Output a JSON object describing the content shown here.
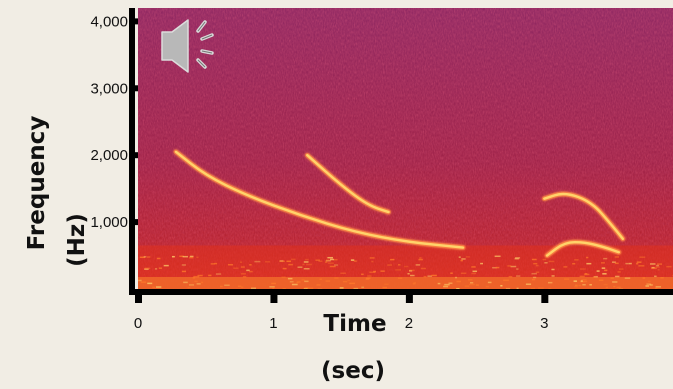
{
  "chart_data": {
    "type": "heatmap",
    "subtype": "spectrogram",
    "xlabel": [
      "Time",
      "(sec)"
    ],
    "ylabel": [
      "Frequency",
      "(Hz)"
    ],
    "x_ticks": [
      0,
      1,
      2,
      3
    ],
    "x_tick_labels": [
      "0",
      "1",
      "2",
      "3"
    ],
    "y_ticks": [
      1000,
      2000,
      3000,
      4000
    ],
    "y_tick_labels": [
      "1,000",
      "2,000",
      "3,000",
      "4,000"
    ],
    "xlim": [
      0,
      3.95
    ],
    "ylim": [
      0,
      4200
    ],
    "grid": false,
    "colors": {
      "background_low": "#7a2a6e",
      "background_mid": "#a31f3a",
      "energy": "#e0301c",
      "peak": "#ffd36a",
      "page": "#f1ede4"
    },
    "traces": [
      {
        "points": [
          [
            0.28,
            2050
          ],
          [
            0.5,
            1700
          ],
          [
            0.8,
            1400
          ],
          [
            1.2,
            1100
          ],
          [
            1.6,
            850
          ],
          [
            2.0,
            700
          ],
          [
            2.4,
            620
          ]
        ]
      },
      {
        "points": [
          [
            1.25,
            2000
          ],
          [
            1.5,
            1550
          ],
          [
            1.7,
            1250
          ],
          [
            1.85,
            1150
          ]
        ]
      },
      {
        "points": [
          [
            3.0,
            1350
          ],
          [
            3.15,
            1450
          ],
          [
            3.35,
            1300
          ],
          [
            3.5,
            950
          ],
          [
            3.58,
            750
          ]
        ]
      },
      {
        "points": [
          [
            3.02,
            500
          ],
          [
            3.15,
            700
          ],
          [
            3.3,
            700
          ],
          [
            3.45,
            620
          ],
          [
            3.55,
            550
          ]
        ]
      }
    ],
    "noise_band": {
      "from": 0,
      "to": 650
    }
  },
  "icons": {
    "speaker": "speaker-icon"
  }
}
